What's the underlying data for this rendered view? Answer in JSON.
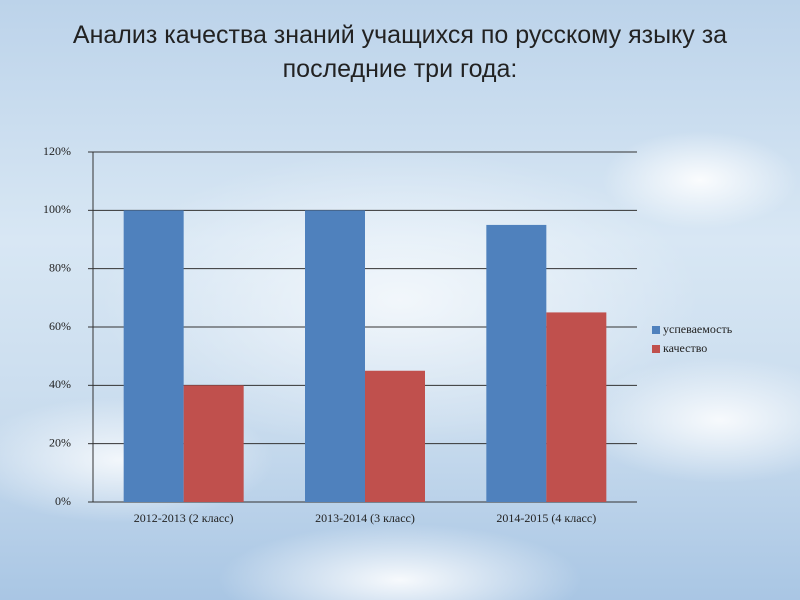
{
  "chart_data": {
    "type": "bar",
    "title": "Анализ качества знаний учащихся по русскому языку за последние три года:",
    "categories": [
      "2012-2013 (2 класс)",
      "2013-2014 (3 класс)",
      "2014-2015 (4 класс)"
    ],
    "series": [
      {
        "name": "успеваемость",
        "color": "#4f81bd",
        "values": [
          100,
          100,
          95
        ]
      },
      {
        "name": "качество",
        "color": "#c0504d",
        "values": [
          40,
          45,
          65
        ]
      }
    ],
    "ylim": [
      0,
      120
    ],
    "yticks": [
      {
        "value": 0,
        "label": "0%"
      },
      {
        "value": 20,
        "label": "20%"
      },
      {
        "value": 40,
        "label": "40%"
      },
      {
        "value": 60,
        "label": "60%"
      },
      {
        "value": 80,
        "label": "80%"
      },
      {
        "value": 100,
        "label": "100%"
      },
      {
        "value": 120,
        "label": "120%"
      }
    ],
    "grid": true,
    "legend": "right"
  }
}
